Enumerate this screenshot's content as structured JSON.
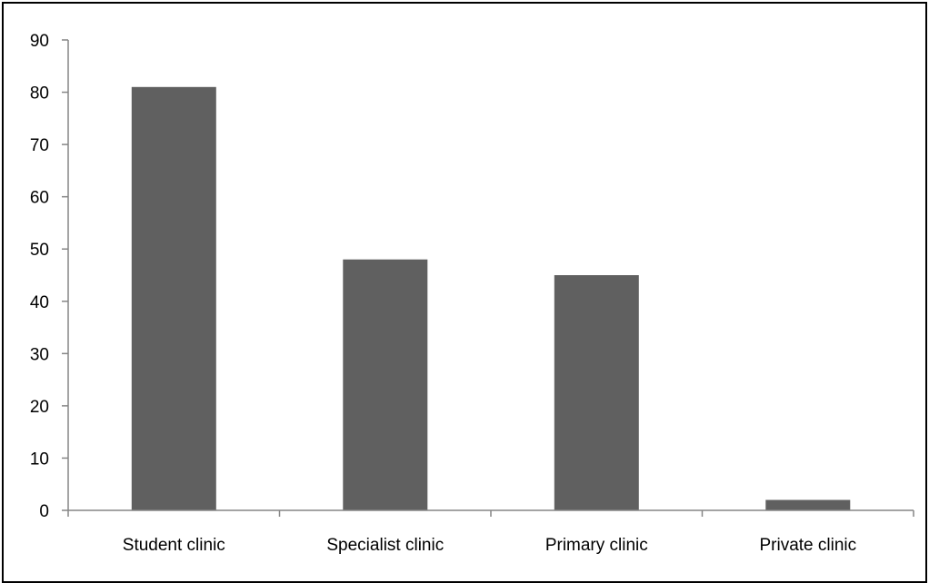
{
  "chart_data": {
    "type": "bar",
    "title": "",
    "xlabel": "",
    "ylabel": "",
    "categories": [
      "Student clinic",
      "Specialist clinic",
      "Primary clinic",
      "Private clinic"
    ],
    "values": [
      81,
      48,
      45,
      2
    ],
    "ylim": [
      0,
      90
    ],
    "yticks": [
      "0",
      "10",
      "20",
      "30",
      "40",
      "50",
      "60",
      "70",
      "80",
      "90"
    ],
    "grid": false,
    "legend": "none",
    "bar_color": "#606060",
    "axis_color": "#868686"
  }
}
